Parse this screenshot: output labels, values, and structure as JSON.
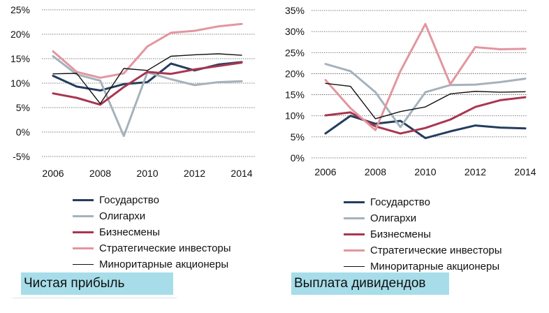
{
  "charts": [
    {
      "caption": "Чистая прибыль",
      "chart_data": {
        "type": "line",
        "title": "",
        "xlabel": "",
        "ylabel": "",
        "x": [
          2006,
          2007,
          2008,
          2009,
          2010,
          2011,
          2012,
          2013,
          2014
        ],
        "x_ticks": [
          "2006",
          "2008",
          "2010",
          "2012",
          "2014"
        ],
        "y_ticks": [
          "25%",
          "20%",
          "15%",
          "10%",
          "5%",
          "0%",
          "-5%"
        ],
        "ylim": [
          -5,
          25
        ],
        "y_step": 5,
        "grid": "dotted horizontal",
        "legend_position": "below",
        "series": [
          {
            "name": "Государство",
            "color": "#233d5e",
            "width": 3,
            "values": [
              11.5,
              9.3,
              8.5,
              9.8,
              10.2,
              14.0,
              12.6,
              13.8,
              14.3
            ]
          },
          {
            "name": "Олигархи",
            "color": "#a5b2bc",
            "width": 3,
            "values": [
              15.5,
              11.8,
              10.5,
              -0.8,
              12.2,
              10.8,
              9.6,
              10.2,
              10.4
            ]
          },
          {
            "name": "Бизнесмены",
            "color": "#a83650",
            "width": 3,
            "values": [
              7.9,
              7.0,
              5.6,
              9.2,
              12.3,
              11.9,
              12.8,
              13.5,
              14.2
            ]
          },
          {
            "name": "Стратегические инвесторы",
            "color": "#e2969f",
            "width": 3,
            "values": [
              16.5,
              12.3,
              11.1,
              12.0,
              17.5,
              20.3,
              20.7,
              21.6,
              22.1
            ]
          },
          {
            "name": "Миноритарные акционеры",
            "color": "#111111",
            "width": 1.4,
            "values": [
              11.9,
              12.0,
              5.8,
              13.0,
              12.6,
              15.5,
              15.8,
              16.0,
              15.7
            ]
          }
        ]
      }
    },
    {
      "caption": "Выплата дивидендов",
      "chart_data": {
        "type": "line",
        "title": "",
        "xlabel": "",
        "ylabel": "",
        "x": [
          2006,
          2007,
          2008,
          2009,
          2010,
          2011,
          2012,
          2013,
          2014
        ],
        "x_ticks": [
          "2006",
          "2008",
          "2010",
          "2012",
          "2014"
        ],
        "y_ticks": [
          "35%",
          "30%",
          "25%",
          "20%",
          "15%",
          "10%",
          "5%",
          "0%"
        ],
        "ylim": [
          0,
          35
        ],
        "y_step": 5,
        "grid": "dotted horizontal",
        "legend_position": "below",
        "series": [
          {
            "name": "Государство",
            "color": "#233d5e",
            "width": 3,
            "values": [
              5.8,
              10.0,
              8.1,
              8.8,
              4.7,
              6.3,
              7.7,
              7.2,
              7.0
            ]
          },
          {
            "name": "Олигархи",
            "color": "#a5b2bc",
            "width": 3,
            "values": [
              22.3,
              20.6,
              15.6,
              7.3,
              15.6,
              17.3,
              17.4,
              18.0,
              18.8
            ]
          },
          {
            "name": "Бизнесмены",
            "color": "#a83650",
            "width": 3,
            "values": [
              10.1,
              10.8,
              7.5,
              5.8,
              7.1,
              9.1,
              12.1,
              13.7,
              14.4
            ]
          },
          {
            "name": "Стратегические инвесторы",
            "color": "#e2969f",
            "width": 3,
            "values": [
              18.5,
              11.8,
              6.6,
              20.6,
              31.8,
              17.5,
              26.3,
              25.8,
              25.9
            ]
          },
          {
            "name": "Миноритарные акционеры",
            "color": "#111111",
            "width": 1.4,
            "values": [
              17.7,
              17.0,
              9.3,
              11.0,
              12.1,
              15.2,
              15.8,
              15.6,
              15.7
            ]
          }
        ]
      }
    }
  ]
}
